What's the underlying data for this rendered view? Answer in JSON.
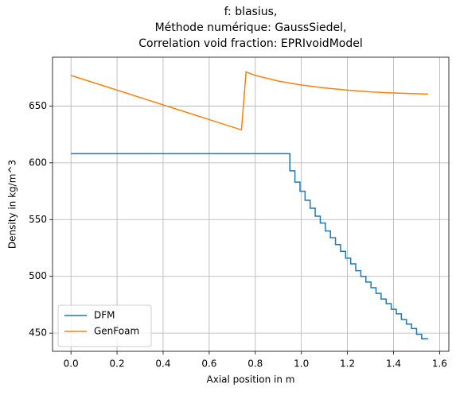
{
  "chart_data": {
    "type": "line",
    "title": "f: blasius,\nMéthode numérique: GaussSiedel,\nCorrelation void fraction: EPRIvoidModel",
    "xlabel": "Axial position in m",
    "ylabel": "Density in kg/m^3",
    "xlim": [
      -0.08,
      1.64
    ],
    "ylim": [
      434,
      693
    ],
    "xticks": [
      {
        "value": 0,
        "label": "0.0"
      },
      {
        "value": 0.2,
        "label": "0.2"
      },
      {
        "value": 0.4,
        "label": "0.4"
      },
      {
        "value": 0.6,
        "label": "0.6"
      },
      {
        "value": 0.8,
        "label": "0.8"
      },
      {
        "value": 1,
        "label": "1.0"
      },
      {
        "value": 1.2,
        "label": "1.2"
      },
      {
        "value": 1.4,
        "label": "1.4"
      },
      {
        "value": 1.6,
        "label": "1.6"
      }
    ],
    "yticks": [
      450,
      500,
      550,
      600,
      650
    ],
    "grid": true,
    "legend": "lower left",
    "series": [
      {
        "name": "DFM",
        "color": "#1f77b4",
        "drawstyle": "steps-post",
        "x": [
          0,
          0.95,
          0.972,
          0.994,
          1.016,
          1.038,
          1.06,
          1.082,
          1.104,
          1.126,
          1.148,
          1.17,
          1.192,
          1.214,
          1.236,
          1.258,
          1.28,
          1.302,
          1.324,
          1.346,
          1.368,
          1.39,
          1.412,
          1.434,
          1.456,
          1.478,
          1.5,
          1.522,
          1.55
        ],
        "values": [
          608,
          593,
          583,
          575,
          567,
          560,
          553,
          547,
          540,
          534,
          528,
          522,
          516,
          511,
          505,
          500,
          495,
          490,
          485,
          480,
          476,
          471,
          467,
          462,
          458,
          454,
          449,
          445,
          445
        ]
      },
      {
        "name": "GenFoam",
        "color": "#ff7f0e",
        "x": [
          0,
          0.74,
          0.76,
          0.8,
          0.9,
          1.0,
          1.1,
          1.2,
          1.3,
          1.4,
          1.55
        ],
        "values": [
          677,
          629,
          680,
          677,
          672,
          668.5,
          666,
          664,
          662.5,
          661.5,
          660.5
        ]
      }
    ]
  }
}
